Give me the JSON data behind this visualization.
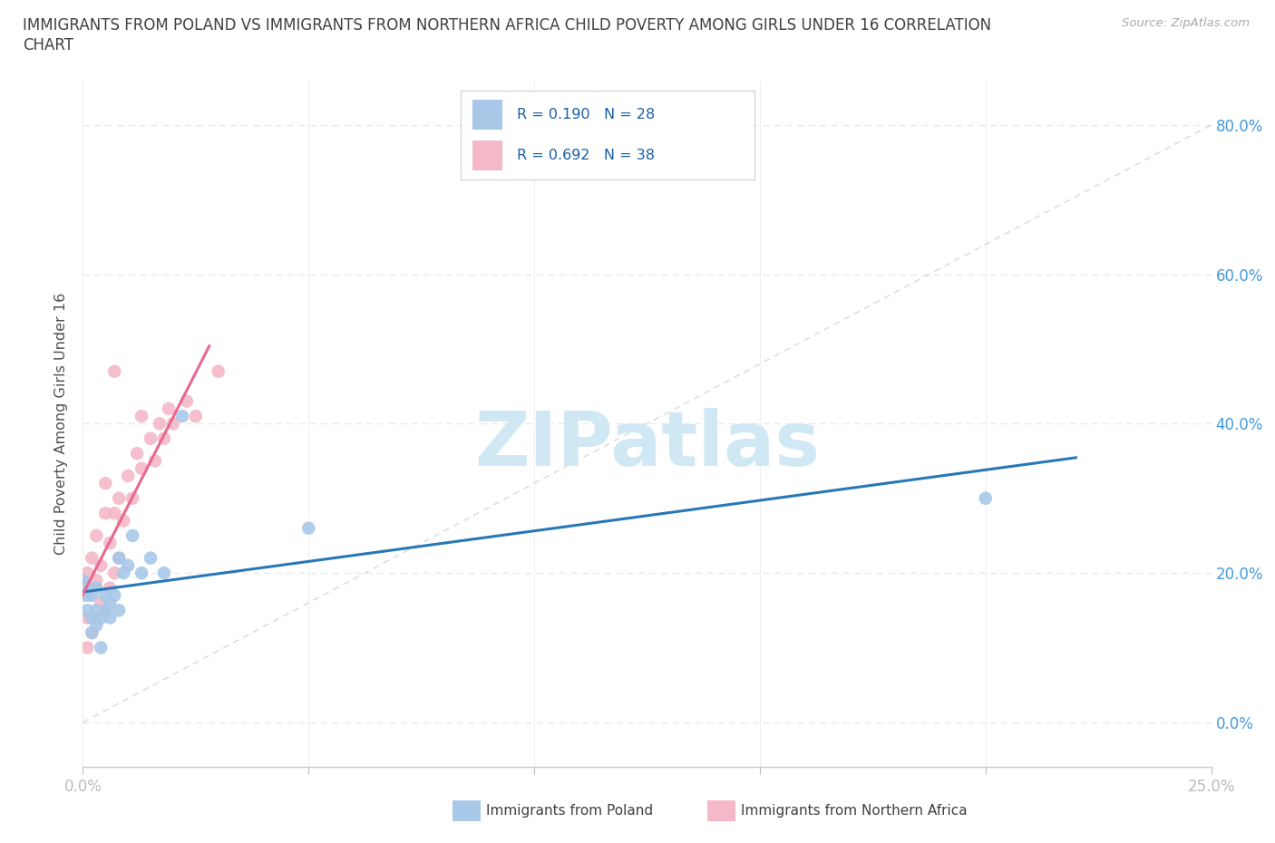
{
  "title_line1": "IMMIGRANTS FROM POLAND VS IMMIGRANTS FROM NORTHERN AFRICA CHILD POVERTY AMONG GIRLS UNDER 16 CORRELATION",
  "title_line2": "CHART",
  "source": "Source: ZipAtlas.com",
  "ylabel": "Child Poverty Among Girls Under 16",
  "xlim": [
    0.0,
    0.25
  ],
  "ylim": [
    -0.06,
    0.86
  ],
  "r_poland": 0.19,
  "n_poland": 28,
  "r_n_africa": 0.692,
  "n_n_africa": 38,
  "blue_scatter_color": "#a8c8e8",
  "pink_scatter_color": "#f4b8c8",
  "blue_line_color": "#2878b8",
  "pink_line_color": "#e86890",
  "diag_line_color": "#c0c0c0",
  "watermark_color": "#d0e8f4",
  "ytick_labels": [
    "0.0%",
    "20.0%",
    "40.0%",
    "60.0%",
    "80.0%"
  ],
  "ytick_values": [
    0.0,
    0.2,
    0.4,
    0.6,
    0.8
  ],
  "xtick_labels": [
    "0.0%",
    "",
    "",
    "",
    "",
    "25.0%"
  ],
  "xtick_values": [
    0.0,
    0.05,
    0.1,
    0.15,
    0.2,
    0.25
  ],
  "grid_color": "#e8e8e8",
  "background_color": "#ffffff",
  "title_color": "#404040",
  "axis_label_color": "#505050",
  "tick_label_color": "#4499dd",
  "legend_text_color": "#1a5fa8",
  "poland_x": [
    0.0,
    0.001,
    0.001,
    0.001,
    0.002,
    0.002,
    0.002,
    0.003,
    0.003,
    0.003,
    0.004,
    0.004,
    0.005,
    0.005,
    0.006,
    0.006,
    0.007,
    0.008,
    0.008,
    0.009,
    0.01,
    0.011,
    0.013,
    0.015,
    0.018,
    0.022,
    0.05,
    0.2
  ],
  "poland_y": [
    0.19,
    0.17,
    0.15,
    0.18,
    0.14,
    0.17,
    0.12,
    0.15,
    0.18,
    0.13,
    0.1,
    0.14,
    0.15,
    0.17,
    0.14,
    0.16,
    0.17,
    0.15,
    0.22,
    0.2,
    0.21,
    0.25,
    0.2,
    0.22,
    0.2,
    0.41,
    0.26,
    0.3
  ],
  "n_africa_x": [
    0.0,
    0.0,
    0.001,
    0.001,
    0.001,
    0.002,
    0.002,
    0.002,
    0.003,
    0.003,
    0.003,
    0.004,
    0.004,
    0.005,
    0.005,
    0.005,
    0.006,
    0.006,
    0.007,
    0.007,
    0.007,
    0.008,
    0.008,
    0.009,
    0.01,
    0.011,
    0.012,
    0.013,
    0.013,
    0.015,
    0.016,
    0.017,
    0.018,
    0.019,
    0.02,
    0.023,
    0.025,
    0.03
  ],
  "n_africa_y": [
    0.17,
    0.19,
    0.1,
    0.14,
    0.2,
    0.12,
    0.18,
    0.22,
    0.14,
    0.19,
    0.25,
    0.16,
    0.21,
    0.15,
    0.28,
    0.32,
    0.18,
    0.24,
    0.2,
    0.28,
    0.47,
    0.22,
    0.3,
    0.27,
    0.33,
    0.3,
    0.36,
    0.34,
    0.41,
    0.38,
    0.35,
    0.4,
    0.38,
    0.42,
    0.4,
    0.43,
    0.41,
    0.47
  ]
}
